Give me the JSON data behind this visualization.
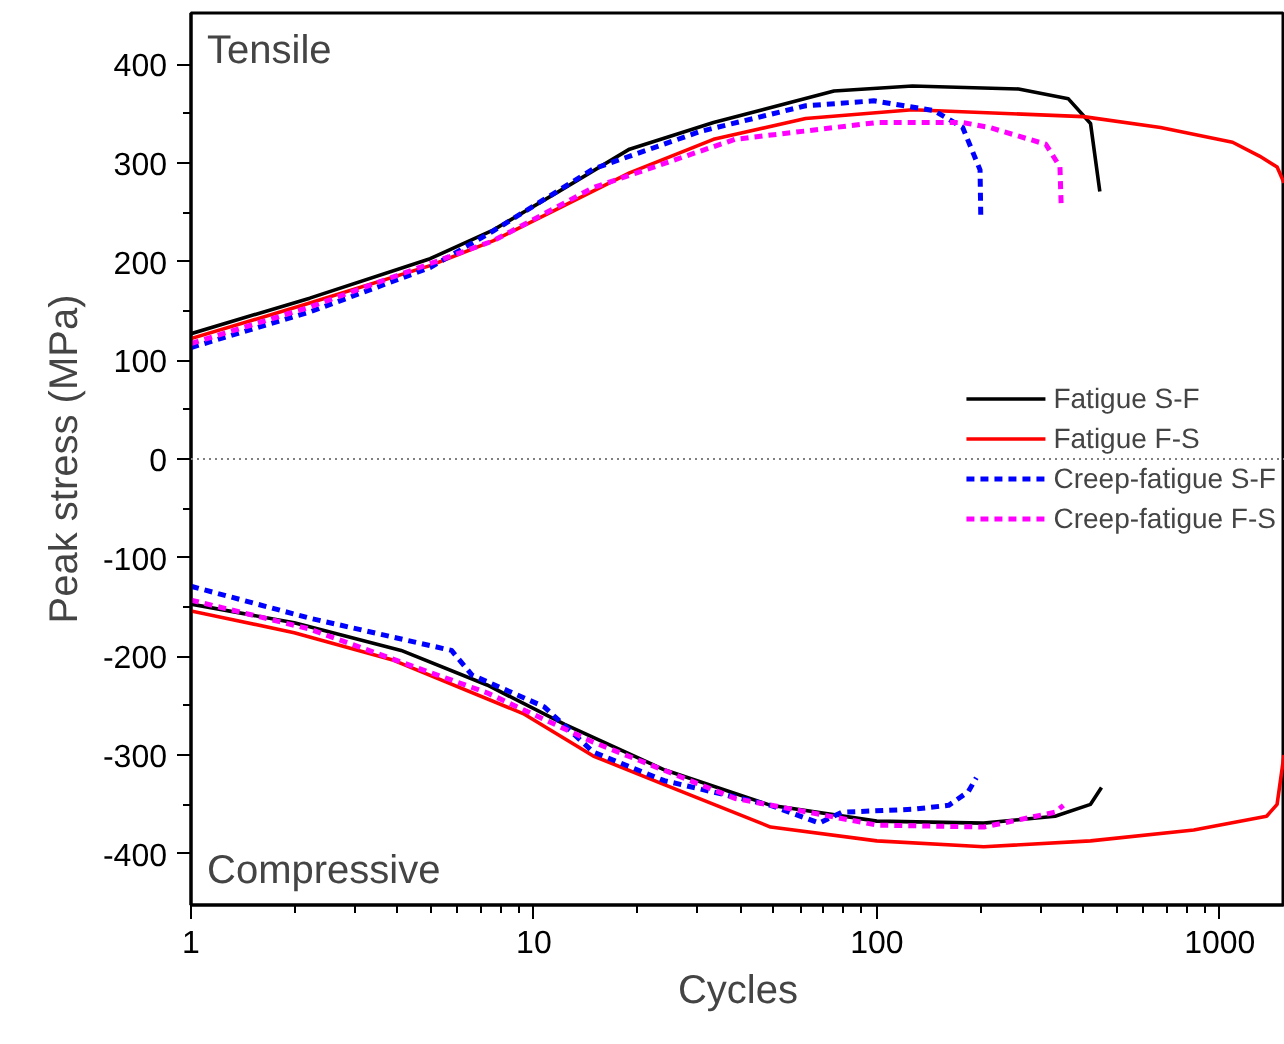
{
  "chart_data": {
    "type": "line",
    "xlabel": "Cycles",
    "ylabel": "Peak stress (MPa)",
    "log": "x",
    "xlim": [
      1,
      1550
    ],
    "ylim": [
      -452,
      452
    ],
    "xticks": [
      1,
      10,
      100,
      1000
    ],
    "yticks": [
      -400,
      -300,
      -200,
      -100,
      0,
      100,
      200,
      300,
      400
    ],
    "grid": false,
    "legend": "right",
    "line_style": "solid",
    "marker": "none",
    "annotations": [
      "Tensile",
      "Compressive"
    ],
    "ref_lines": [
      {
        "axis": "y",
        "value": 0,
        "label": null,
        "color": "#808080",
        "line_style": "dotted"
      }
    ],
    "series": [
      {
        "name": "Fatigue S-F",
        "color": "#000000",
        "x": [
          1,
          2.22,
          4.98,
          7.6,
          11.8,
          19,
          33.4,
          75,
          127,
          259,
          362,
          420,
          447
        ],
        "values": [
          127,
          163,
          203,
          232,
          271,
          314,
          341,
          373,
          378,
          375,
          365,
          340,
          271
        ]
      },
      {
        "name": "Fatigue F-S",
        "color": "#ff0000",
        "x": [
          1,
          2.22,
          4.98,
          7.6,
          11.8,
          19,
          33.4,
          62,
          127,
          400,
          672,
          1090,
          1306,
          1470,
          1540
        ],
        "values": [
          122,
          158,
          196,
          221,
          254,
          290,
          324,
          345,
          354,
          347,
          336,
          321,
          307,
          296,
          280
        ]
      },
      {
        "name": "Creep-fatigue S-F",
        "color": "#0000ff",
        "line_style": "dashed",
        "x": [
          1,
          2.22,
          4.98,
          7.6,
          14.9,
          30.6,
          62,
          98,
          147,
          178,
          200,
          201
        ],
        "values": [
          113,
          149,
          194,
          231,
          294,
          332,
          358,
          363,
          353,
          336,
          293,
          245
        ]
      },
      {
        "name": "Creep-fatigue F-S",
        "color": "#ff00ff",
        "line_style": "dashed",
        "x": [
          1,
          2.22,
          7.6,
          14.9,
          38.6,
          100,
          178,
          213,
          311,
          342,
          345
        ],
        "values": [
          117,
          154,
          221,
          275,
          324,
          341,
          341,
          336,
          319,
          296,
          255
        ]
      },
      {
        "color": "#000000",
        "x": [
          1,
          2.0,
          4.1,
          7.3,
          12.3,
          24,
          49,
          100,
          205,
          331,
          420,
          452
        ],
        "values": [
          -147,
          -166,
          -194,
          -229,
          -269,
          -315,
          -351,
          -367,
          -369,
          -362,
          -350,
          -333
        ]
      },
      {
        "color": "#ff0000",
        "x": [
          1,
          2.0,
          3.9,
          9.3,
          14.9,
          24,
          49,
          100,
          205,
          420,
          840,
          1370,
          1470,
          1540
        ],
        "values": [
          -154,
          -176,
          -204,
          -258,
          -301,
          -330,
          -373,
          -387,
          -393,
          -387,
          -376,
          -362,
          -350,
          -300
        ]
      },
      {
        "color": "#0000ff",
        "line_style": "dashed",
        "x": [
          1,
          2.2,
          5.75,
          6.6,
          10.7,
          14.9,
          24,
          49,
          68,
          79,
          127,
          162,
          185,
          195
        ],
        "values": [
          -129,
          -161,
          -194,
          -219,
          -251,
          -297,
          -326,
          -351,
          -369,
          -358,
          -355,
          -351,
          -337,
          -323
        ]
      },
      {
        "color": "#ff00ff",
        "line_style": "dashed",
        "x": [
          1,
          2.2,
          7.3,
          14.9,
          38.6,
          100,
          205,
          331,
          350
        ],
        "values": [
          -143,
          -172,
          -237,
          -287,
          -344,
          -371,
          -373,
          -358,
          -351
        ]
      }
    ]
  }
}
